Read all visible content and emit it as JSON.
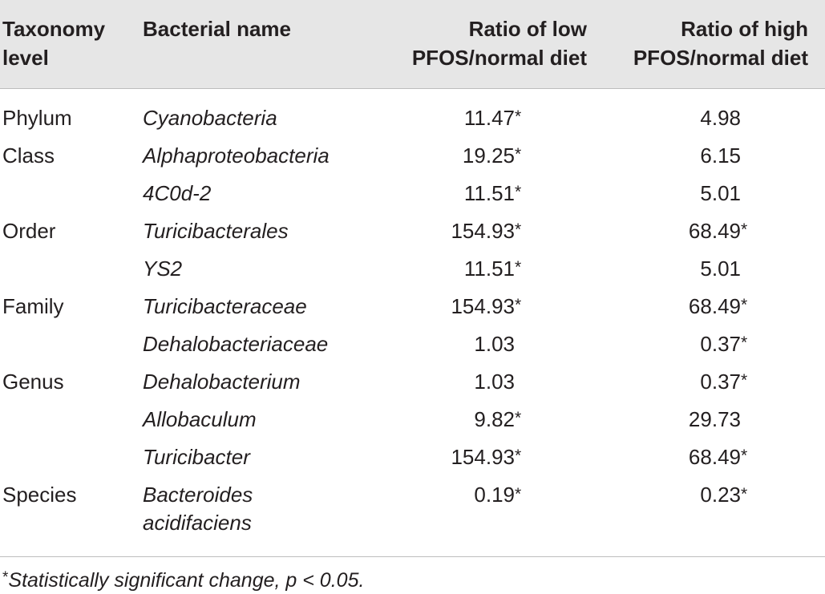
{
  "table": {
    "headers": {
      "taxonomy_line1": "Taxonomy",
      "taxonomy_line2": "level",
      "name": "Bacterial name",
      "low_line1": "Ratio of low",
      "low_line2": "PFOS/normal diet",
      "high_line1": "Ratio of high",
      "high_line2": "PFOS/normal diet"
    },
    "rows": [
      {
        "level": "Phylum",
        "name": "Cyanobacteria",
        "low": "11.47",
        "low_sig": "*",
        "high": "4.98",
        "high_sig": ""
      },
      {
        "level": "Class",
        "name": "Alphaproteobacteria",
        "low": "19.25",
        "low_sig": "*",
        "high": "6.15",
        "high_sig": ""
      },
      {
        "level": "",
        "name": "4C0d-2",
        "low": "11.51",
        "low_sig": "*",
        "high": "5.01",
        "high_sig": ""
      },
      {
        "level": "Order",
        "name": "Turicibacterales",
        "low": "154.93",
        "low_sig": "*",
        "high": "68.49",
        "high_sig": "*"
      },
      {
        "level": "",
        "name": "YS2",
        "low": "11.51",
        "low_sig": "*",
        "high": "5.01",
        "high_sig": ""
      },
      {
        "level": "Family",
        "name": "Turicibacteraceae",
        "low": "154.93",
        "low_sig": "*",
        "high": "68.49",
        "high_sig": "*"
      },
      {
        "level": "",
        "name": "Dehalobacteriaceae",
        "low": "1.03",
        "low_sig": "",
        "high": "0.37",
        "high_sig": "*"
      },
      {
        "level": "Genus",
        "name": "Dehalobacterium",
        "low": "1.03",
        "low_sig": "",
        "high": "0.37",
        "high_sig": "*"
      },
      {
        "level": "",
        "name": "Allobaculum",
        "low": "9.82",
        "low_sig": "*",
        "high": "29.73",
        "high_sig": ""
      },
      {
        "level": "",
        "name": "Turicibacter",
        "low": "154.93",
        "low_sig": "*",
        "high": "68.49",
        "high_sig": "*"
      },
      {
        "level": "Species",
        "name": "Bacteroides acidifaciens",
        "low": "0.19",
        "low_sig": "*",
        "high": "0.23",
        "high_sig": "*"
      }
    ]
  },
  "footnote": {
    "symbol": "*",
    "text": "Statistically significant change, p < 0.05."
  }
}
